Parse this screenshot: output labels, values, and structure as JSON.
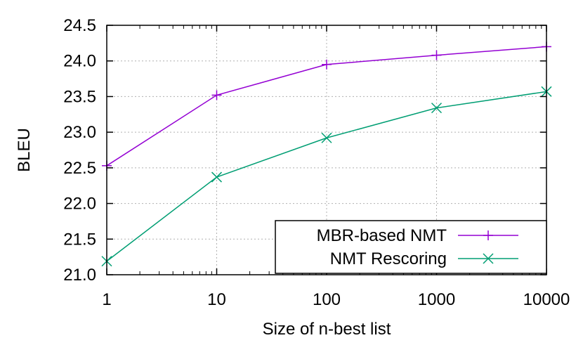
{
  "chart_data": {
    "type": "line",
    "xlabel": "Size of n-best list",
    "ylabel": "BLEU",
    "x_scale": "log",
    "xlim": [
      1,
      10000
    ],
    "ylim": [
      21.0,
      24.5
    ],
    "x_ticks": [
      1,
      10,
      100,
      1000,
      10000
    ],
    "x_tick_labels": [
      "1",
      "10",
      "100",
      "1000",
      "10000"
    ],
    "y_ticks": [
      21.0,
      21.5,
      22.0,
      22.5,
      23.0,
      23.5,
      24.0,
      24.5
    ],
    "y_tick_labels": [
      "21.0",
      "21.5",
      "22.0",
      "22.5",
      "23.0",
      "23.5",
      "24.0",
      "24.5"
    ],
    "grid": true,
    "legend_position": "bottom-right",
    "x": [
      1,
      10,
      100,
      1000,
      10000
    ],
    "series": [
      {
        "name": "MBR-based NMT",
        "values": [
          22.53,
          23.52,
          23.95,
          24.08,
          24.2
        ],
        "color": "#9400d3",
        "marker": "plus"
      },
      {
        "name": "NMT Rescoring",
        "values": [
          21.19,
          22.37,
          22.92,
          23.34,
          23.57
        ],
        "color": "#009e73",
        "marker": "cross"
      }
    ]
  }
}
